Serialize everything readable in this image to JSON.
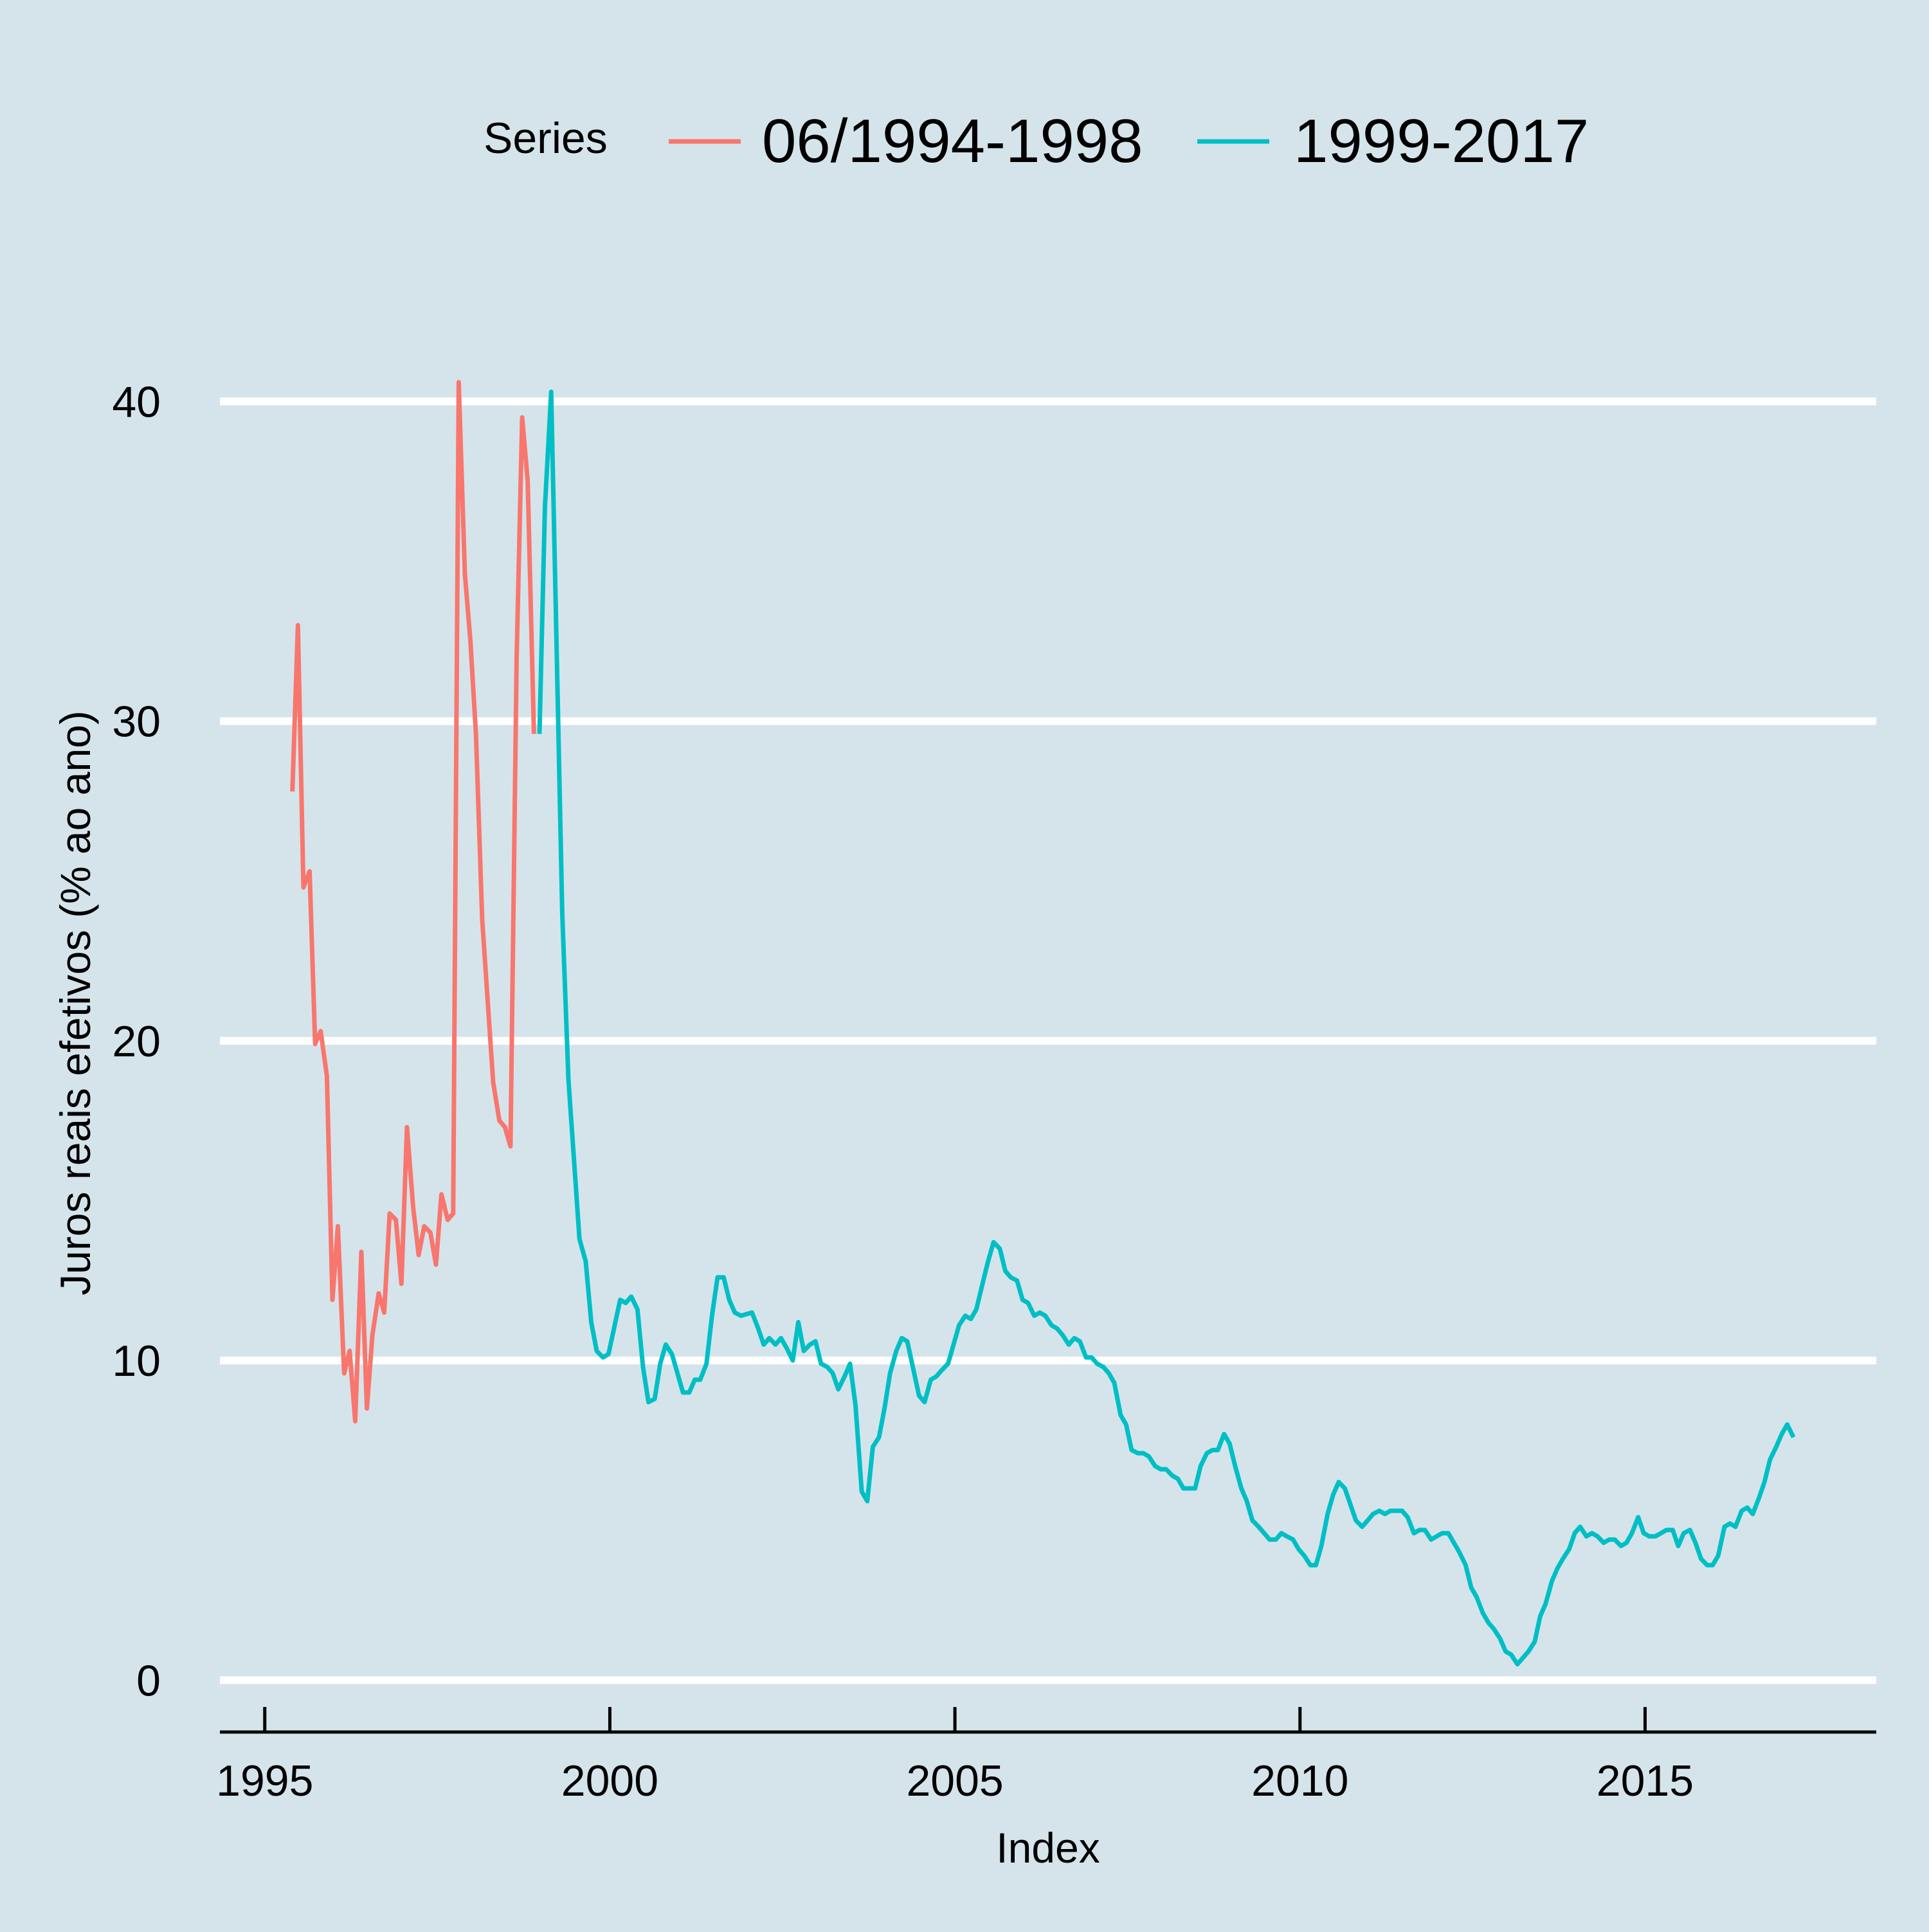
{
  "chart_data": {
    "type": "line",
    "title": "",
    "xlabel": "Index",
    "ylabel": "Juros reais efetivos (% ao ano)",
    "xlim": [
      1994.35,
      2018.35
    ],
    "ylim": [
      -1.5,
      42.5
    ],
    "x_ticks": [
      1995,
      2000,
      2005,
      2010,
      2015
    ],
    "y_ticks": [
      0,
      10,
      20,
      30,
      40
    ],
    "grid": "horizontal-major",
    "legend": {
      "position": "top",
      "title": "Series",
      "entries": [
        "06/1994-1998",
        "1999-2017"
      ]
    },
    "colors": {
      "background": "#d5e4eb",
      "grid": "#ffffff",
      "series1": "#f8766d",
      "series2": "#00bfc4"
    },
    "series": [
      {
        "name": "06/1994-1998",
        "color": "#f8766d",
        "points": [
          [
            1995.4,
            27.8
          ],
          [
            1995.48,
            33.0
          ],
          [
            1995.56,
            24.8
          ],
          [
            1995.65,
            25.3
          ],
          [
            1995.73,
            19.9
          ],
          [
            1995.81,
            20.3
          ],
          [
            1995.9,
            18.9
          ],
          [
            1995.98,
            11.9
          ],
          [
            1996.06,
            14.2
          ],
          [
            1996.15,
            9.6
          ],
          [
            1996.23,
            10.3
          ],
          [
            1996.31,
            8.1
          ],
          [
            1996.4,
            13.4
          ],
          [
            1996.48,
            8.5
          ],
          [
            1996.56,
            10.8
          ],
          [
            1996.65,
            12.1
          ],
          [
            1996.73,
            11.5
          ],
          [
            1996.81,
            14.6
          ],
          [
            1996.9,
            14.4
          ],
          [
            1996.98,
            12.4
          ],
          [
            1997.06,
            17.3
          ],
          [
            1997.15,
            14.8
          ],
          [
            1997.23,
            13.3
          ],
          [
            1997.31,
            14.2
          ],
          [
            1997.4,
            14.0
          ],
          [
            1997.48,
            13.0
          ],
          [
            1997.56,
            15.2
          ],
          [
            1997.65,
            14.4
          ],
          [
            1997.73,
            14.6
          ],
          [
            1997.81,
            40.6
          ],
          [
            1997.9,
            34.6
          ],
          [
            1997.98,
            32.5
          ],
          [
            1998.06,
            29.6
          ],
          [
            1998.15,
            23.8
          ],
          [
            1998.31,
            18.7
          ],
          [
            1998.4,
            17.5
          ],
          [
            1998.48,
            17.3
          ],
          [
            1998.56,
            16.7
          ],
          [
            1998.65,
            32.0
          ],
          [
            1998.73,
            39.5
          ],
          [
            1998.81,
            37.5
          ],
          [
            1998.9,
            29.6
          ]
        ]
      },
      {
        "name": "1999-2017",
        "color": "#00bfc4",
        "points": [
          [
            1998.98,
            29.6
          ],
          [
            1999.06,
            36.7
          ],
          [
            1999.15,
            40.3
          ],
          [
            1999.31,
            24.0
          ],
          [
            1999.4,
            18.8
          ],
          [
            1999.56,
            13.8
          ],
          [
            1999.65,
            13.1
          ],
          [
            1999.73,
            11.2
          ],
          [
            1999.81,
            10.3
          ],
          [
            1999.9,
            10.1
          ],
          [
            1999.98,
            10.2
          ],
          [
            2000.15,
            11.9
          ],
          [
            2000.23,
            11.8
          ],
          [
            2000.31,
            12.0
          ],
          [
            2000.4,
            11.6
          ],
          [
            2000.48,
            9.8
          ],
          [
            2000.56,
            8.7
          ],
          [
            2000.65,
            8.8
          ],
          [
            2000.73,
            9.9
          ],
          [
            2000.81,
            10.5
          ],
          [
            2000.9,
            10.2
          ],
          [
            2000.98,
            9.6
          ],
          [
            2001.06,
            9.0
          ],
          [
            2001.15,
            9.0
          ],
          [
            2001.23,
            9.4
          ],
          [
            2001.31,
            9.4
          ],
          [
            2001.4,
            9.9
          ],
          [
            2001.48,
            11.4
          ],
          [
            2001.56,
            12.6
          ],
          [
            2001.65,
            12.6
          ],
          [
            2001.73,
            11.9
          ],
          [
            2001.81,
            11.5
          ],
          [
            2001.9,
            11.4
          ],
          [
            2002.06,
            11.5
          ],
          [
            2002.15,
            11.0
          ],
          [
            2002.23,
            10.5
          ],
          [
            2002.31,
            10.7
          ],
          [
            2002.4,
            10.5
          ],
          [
            2002.48,
            10.7
          ],
          [
            2002.56,
            10.4
          ],
          [
            2002.65,
            10.0
          ],
          [
            2002.73,
            11.2
          ],
          [
            2002.81,
            10.3
          ],
          [
            2002.9,
            10.5
          ],
          [
            2002.98,
            10.6
          ],
          [
            2003.06,
            9.9
          ],
          [
            2003.15,
            9.8
          ],
          [
            2003.23,
            9.6
          ],
          [
            2003.31,
            9.1
          ],
          [
            2003.4,
            9.5
          ],
          [
            2003.48,
            9.9
          ],
          [
            2003.56,
            8.6
          ],
          [
            2003.65,
            5.9
          ],
          [
            2003.73,
            5.6
          ],
          [
            2003.81,
            7.3
          ],
          [
            2003.9,
            7.6
          ],
          [
            2003.98,
            8.5
          ],
          [
            2004.06,
            9.6
          ],
          [
            2004.15,
            10.3
          ],
          [
            2004.23,
            10.7
          ],
          [
            2004.31,
            10.6
          ],
          [
            2004.4,
            9.7
          ],
          [
            2004.48,
            8.9
          ],
          [
            2004.56,
            8.7
          ],
          [
            2004.65,
            9.4
          ],
          [
            2004.73,
            9.5
          ],
          [
            2004.81,
            9.7
          ],
          [
            2004.9,
            9.9
          ],
          [
            2004.98,
            10.5
          ],
          [
            2005.06,
            11.1
          ],
          [
            2005.15,
            11.4
          ],
          [
            2005.23,
            11.3
          ],
          [
            2005.31,
            11.6
          ],
          [
            2005.4,
            12.4
          ],
          [
            2005.48,
            13.1
          ],
          [
            2005.56,
            13.7
          ],
          [
            2005.65,
            13.5
          ],
          [
            2005.73,
            12.8
          ],
          [
            2005.81,
            12.6
          ],
          [
            2005.9,
            12.5
          ],
          [
            2005.98,
            11.9
          ],
          [
            2006.06,
            11.8
          ],
          [
            2006.15,
            11.4
          ],
          [
            2006.23,
            11.5
          ],
          [
            2006.31,
            11.4
          ],
          [
            2006.4,
            11.1
          ],
          [
            2006.48,
            11.0
          ],
          [
            2006.56,
            10.8
          ],
          [
            2006.65,
            10.5
          ],
          [
            2006.73,
            10.7
          ],
          [
            2006.81,
            10.6
          ],
          [
            2006.9,
            10.1
          ],
          [
            2006.98,
            10.1
          ],
          [
            2007.06,
            9.9
          ],
          [
            2007.15,
            9.8
          ],
          [
            2007.23,
            9.6
          ],
          [
            2007.31,
            9.3
          ],
          [
            2007.4,
            8.3
          ],
          [
            2007.48,
            8.0
          ],
          [
            2007.56,
            7.2
          ],
          [
            2007.65,
            7.1
          ],
          [
            2007.73,
            7.1
          ],
          [
            2007.81,
            7.0
          ],
          [
            2007.9,
            6.7
          ],
          [
            2007.98,
            6.6
          ],
          [
            2008.06,
            6.6
          ],
          [
            2008.15,
            6.4
          ],
          [
            2008.23,
            6.3
          ],
          [
            2008.31,
            6.0
          ],
          [
            2008.4,
            6.0
          ],
          [
            2008.48,
            6.0
          ],
          [
            2008.56,
            6.7
          ],
          [
            2008.65,
            7.1
          ],
          [
            2008.73,
            7.2
          ],
          [
            2008.81,
            7.2
          ],
          [
            2008.9,
            7.7
          ],
          [
            2008.98,
            7.4
          ],
          [
            2009.06,
            6.7
          ],
          [
            2009.15,
            6.0
          ],
          [
            2009.23,
            5.6
          ],
          [
            2009.31,
            5.0
          ],
          [
            2009.4,
            4.8
          ],
          [
            2009.48,
            4.6
          ],
          [
            2009.56,
            4.4
          ],
          [
            2009.65,
            4.4
          ],
          [
            2009.73,
            4.6
          ],
          [
            2009.81,
            4.5
          ],
          [
            2009.9,
            4.4
          ],
          [
            2009.98,
            4.1
          ],
          [
            2010.06,
            3.9
          ],
          [
            2010.15,
            3.6
          ],
          [
            2010.23,
            3.6
          ],
          [
            2010.31,
            4.2
          ],
          [
            2010.4,
            5.2
          ],
          [
            2010.48,
            5.8
          ],
          [
            2010.56,
            6.2
          ],
          [
            2010.65,
            6.0
          ],
          [
            2010.73,
            5.5
          ],
          [
            2010.81,
            5.0
          ],
          [
            2010.9,
            4.8
          ],
          [
            2010.98,
            5.0
          ],
          [
            2011.06,
            5.2
          ],
          [
            2011.15,
            5.3
          ],
          [
            2011.23,
            5.2
          ],
          [
            2011.31,
            5.3
          ],
          [
            2011.4,
            5.3
          ],
          [
            2011.48,
            5.3
          ],
          [
            2011.56,
            5.1
          ],
          [
            2011.65,
            4.6
          ],
          [
            2011.73,
            4.7
          ],
          [
            2011.81,
            4.7
          ],
          [
            2011.9,
            4.4
          ],
          [
            2011.98,
            4.5
          ],
          [
            2012.06,
            4.6
          ],
          [
            2012.15,
            4.6
          ],
          [
            2012.23,
            4.3
          ],
          [
            2012.31,
            4.0
          ],
          [
            2012.4,
            3.6
          ],
          [
            2012.48,
            2.9
          ],
          [
            2012.56,
            2.6
          ],
          [
            2012.65,
            2.1
          ],
          [
            2012.73,
            1.8
          ],
          [
            2012.81,
            1.6
          ],
          [
            2012.9,
            1.3
          ],
          [
            2012.98,
            0.9
          ],
          [
            2013.06,
            0.8
          ],
          [
            2013.15,
            0.5
          ],
          [
            2013.23,
            0.7
          ],
          [
            2013.31,
            0.9
          ],
          [
            2013.4,
            1.2
          ],
          [
            2013.48,
            2.0
          ],
          [
            2013.56,
            2.4
          ],
          [
            2013.65,
            3.1
          ],
          [
            2013.73,
            3.5
          ],
          [
            2013.81,
            3.8
          ],
          [
            2013.9,
            4.1
          ],
          [
            2013.98,
            4.6
          ],
          [
            2014.06,
            4.8
          ],
          [
            2014.15,
            4.5
          ],
          [
            2014.23,
            4.6
          ],
          [
            2014.31,
            4.5
          ],
          [
            2014.4,
            4.3
          ],
          [
            2014.48,
            4.4
          ],
          [
            2014.56,
            4.4
          ],
          [
            2014.65,
            4.2
          ],
          [
            2014.73,
            4.3
          ],
          [
            2014.81,
            4.6
          ],
          [
            2014.9,
            5.1
          ],
          [
            2014.98,
            4.6
          ],
          [
            2015.06,
            4.5
          ],
          [
            2015.15,
            4.5
          ],
          [
            2015.23,
            4.6
          ],
          [
            2015.31,
            4.7
          ],
          [
            2015.4,
            4.7
          ],
          [
            2015.48,
            4.2
          ],
          [
            2015.56,
            4.6
          ],
          [
            2015.65,
            4.7
          ],
          [
            2015.73,
            4.3
          ],
          [
            2015.81,
            3.8
          ],
          [
            2015.9,
            3.6
          ],
          [
            2015.98,
            3.6
          ],
          [
            2016.06,
            3.9
          ],
          [
            2016.15,
            4.8
          ],
          [
            2016.23,
            4.9
          ],
          [
            2016.31,
            4.8
          ],
          [
            2016.4,
            5.3
          ],
          [
            2016.48,
            5.4
          ],
          [
            2016.56,
            5.2
          ],
          [
            2016.65,
            5.7
          ],
          [
            2016.73,
            6.2
          ],
          [
            2016.81,
            6.9
          ],
          [
            2016.9,
            7.3
          ],
          [
            2016.98,
            7.7
          ],
          [
            2017.06,
            8.0
          ],
          [
            2017.15,
            7.6
          ]
        ]
      }
    ]
  }
}
